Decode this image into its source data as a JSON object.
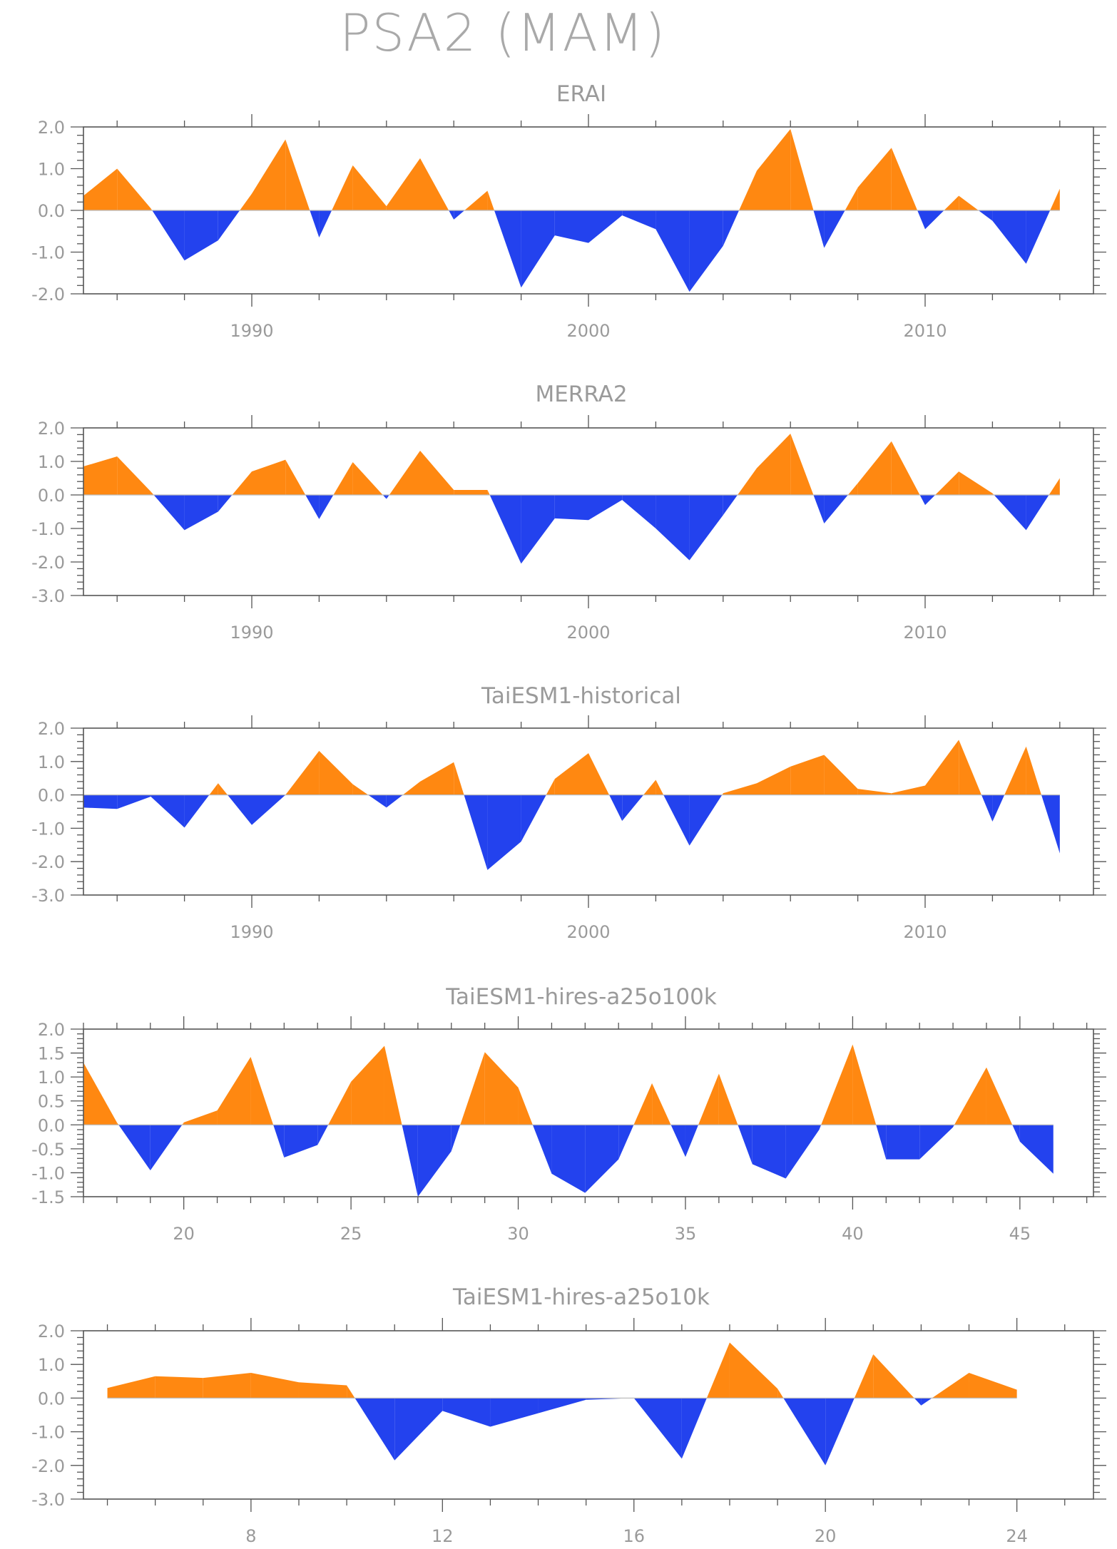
{
  "page": {
    "title": "PSA2 (MAM)"
  },
  "colors": {
    "positive": "#ff8811",
    "negative": "#2342ee",
    "axis": "#555555",
    "text": "#9a9a9a"
  },
  "chart_data": [
    {
      "type": "area",
      "title": "ERAI",
      "xlabel": "",
      "ylabel": "",
      "xlim": [
        1985,
        2015
      ],
      "ylim": [
        -2.0,
        2.0
      ],
      "yticks": [
        -2.0,
        -1.0,
        0.0,
        1.0,
        2.0
      ],
      "ytick_labels": [
        "-2.0",
        "-1.0",
        "0.0",
        "1.0",
        "2.0"
      ],
      "ytick_minor_step": 0.2,
      "xticks": [
        1990,
        2000,
        2010
      ],
      "xtick_labels": [
        "1990",
        "2000",
        "2010"
      ],
      "xtick_minor_step": 2,
      "grid": false,
      "legend": "none",
      "x": [
        1985,
        1986,
        1987,
        1988,
        1989,
        1990,
        1991,
        1992,
        1993,
        1994,
        1995,
        1996,
        1997,
        1998,
        1999,
        2000,
        2001,
        2002,
        2003,
        2004,
        2005,
        2006,
        2007,
        2008,
        2009,
        2010,
        2011,
        2012,
        2013,
        2014
      ],
      "values": [
        0.35,
        1.0,
        0.05,
        -1.2,
        -0.72,
        0.4,
        1.7,
        -0.65,
        1.08,
        0.1,
        1.25,
        -0.22,
        0.47,
        -1.85,
        -0.6,
        -0.78,
        -0.12,
        -0.45,
        -1.95,
        -0.85,
        0.95,
        1.95,
        -0.9,
        0.55,
        1.5,
        -0.45,
        0.35,
        -0.25,
        -1.28,
        0.52
      ]
    },
    {
      "type": "area",
      "title": "MERRA2",
      "xlabel": "",
      "ylabel": "",
      "xlim": [
        1985,
        2015
      ],
      "ylim": [
        -3.0,
        2.0
      ],
      "yticks": [
        -3.0,
        -2.0,
        -1.0,
        0.0,
        1.0,
        2.0
      ],
      "ytick_labels": [
        "-3.0",
        "-2.0",
        "-1.0",
        "0.0",
        "1.0",
        "2.0"
      ],
      "ytick_minor_step": 0.2,
      "xticks": [
        1990,
        2000,
        2010
      ],
      "xtick_labels": [
        "1990",
        "2000",
        "2010"
      ],
      "xtick_minor_step": 2,
      "grid": false,
      "legend": "none",
      "x": [
        1985,
        1986,
        1987,
        1988,
        1989,
        1990,
        1991,
        1992,
        1993,
        1994,
        1995,
        1996,
        1997,
        1998,
        1999,
        2000,
        2001,
        2002,
        2003,
        2004,
        2005,
        2006,
        2007,
        2008,
        2009,
        2010,
        2011,
        2012,
        2013,
        2014
      ],
      "values": [
        0.85,
        1.15,
        0.1,
        -1.05,
        -0.5,
        0.7,
        1.05,
        -0.72,
        0.98,
        -0.12,
        1.32,
        0.15,
        0.15,
        -2.05,
        -0.7,
        -0.75,
        -0.15,
        -1.0,
        -1.95,
        -0.6,
        0.8,
        1.83,
        -0.85,
        0.35,
        1.6,
        -0.3,
        0.7,
        0.05,
        -1.05,
        0.5
      ]
    },
    {
      "type": "area",
      "title": "TaiESM1-historical",
      "xlabel": "",
      "ylabel": "",
      "xlim": [
        1985,
        2015
      ],
      "ylim": [
        -3.0,
        2.0
      ],
      "yticks": [
        -3.0,
        -2.0,
        -1.0,
        0.0,
        1.0,
        2.0
      ],
      "ytick_labels": [
        "-3.0",
        "-2.0",
        "-1.0",
        "0.0",
        "1.0",
        "2.0"
      ],
      "ytick_minor_step": 0.2,
      "xticks": [
        1990,
        2000,
        2010
      ],
      "xtick_labels": [
        "1990",
        "2000",
        "2010"
      ],
      "xtick_minor_step": 2,
      "grid": false,
      "legend": "none",
      "x": [
        1985,
        1986,
        1987,
        1988,
        1989,
        1990,
        1991,
        1992,
        1993,
        1994,
        1995,
        1996,
        1997,
        1998,
        1999,
        2000,
        2001,
        2002,
        2003,
        2004,
        2005,
        2006,
        2007,
        2008,
        2009,
        2010,
        2011,
        2012,
        2013,
        2014
      ],
      "values": [
        -0.38,
        -0.42,
        -0.05,
        -0.98,
        0.35,
        -0.9,
        0.0,
        1.32,
        0.32,
        -0.38,
        0.4,
        0.98,
        -2.25,
        -1.4,
        0.48,
        1.25,
        -0.78,
        0.45,
        -1.52,
        0.05,
        0.35,
        0.85,
        1.2,
        0.18,
        0.05,
        0.28,
        1.65,
        -0.8,
        1.45,
        -1.75
      ]
    },
    {
      "type": "area",
      "title": "TaiESM1-hires-a25o100k",
      "xlabel": "",
      "ylabel": "",
      "xlim": [
        17,
        47.2
      ],
      "ylim": [
        -1.5,
        2.0
      ],
      "yticks": [
        -1.5,
        -1.0,
        -0.5,
        0.0,
        0.5,
        1.0,
        1.5,
        2.0
      ],
      "ytick_labels": [
        "-1.5",
        "-1.0",
        "-0.5",
        "0.0",
        "0.5",
        "1.0",
        "1.5",
        "2.0"
      ],
      "ytick_minor_step": 0.1,
      "xticks": [
        20,
        25,
        30,
        35,
        40,
        45
      ],
      "xtick_labels": [
        "20",
        "25",
        "30",
        "35",
        "40",
        "45"
      ],
      "xtick_minor_step": 1,
      "grid": false,
      "legend": "none",
      "x": [
        17,
        18,
        19,
        20,
        21,
        22,
        23,
        24,
        25,
        26,
        27,
        28,
        29,
        30,
        31,
        32,
        33,
        34,
        35,
        36,
        37,
        38,
        39,
        40,
        41,
        42,
        43,
        44,
        45,
        46
      ],
      "values": [
        1.3,
        0.05,
        -0.95,
        0.05,
        0.3,
        1.42,
        -0.68,
        -0.42,
        0.9,
        1.65,
        -1.5,
        -0.55,
        1.52,
        0.78,
        -1.02,
        -1.42,
        -0.72,
        0.87,
        -0.67,
        1.07,
        -0.82,
        -1.12,
        -0.1,
        1.68,
        -0.72,
        -0.72,
        -0.05,
        1.2,
        -0.35,
        -1.02
      ]
    },
    {
      "type": "area",
      "title": "TaiESM1-hires-a25o10k",
      "xlabel": "",
      "ylabel": "",
      "xlim": [
        4.5,
        25.6
      ],
      "ylim": [
        -3.0,
        2.0
      ],
      "yticks": [
        -3.0,
        -2.0,
        -1.0,
        0.0,
        1.0,
        2.0
      ],
      "ytick_labels": [
        "-3.0",
        "-2.0",
        "-1.0",
        "0.0",
        "1.0",
        "2.0"
      ],
      "ytick_minor_step": 0.2,
      "xticks": [
        8,
        12,
        16,
        20,
        24
      ],
      "xtick_labels": [
        "8",
        "12",
        "16",
        "20",
        "24"
      ],
      "xtick_minor_step": 1,
      "grid": false,
      "legend": "none",
      "x": [
        5,
        6,
        7,
        8,
        9,
        10,
        11,
        12,
        13,
        14,
        15,
        16,
        17,
        18,
        19,
        20,
        21,
        22,
        23,
        24
      ],
      "values": [
        0.3,
        0.65,
        0.6,
        0.75,
        0.47,
        0.38,
        -1.85,
        -0.38,
        -0.85,
        -0.45,
        -0.05,
        0.0,
        -1.8,
        1.65,
        0.28,
        -2.0,
        1.3,
        -0.22,
        0.75,
        0.25
      ]
    }
  ]
}
